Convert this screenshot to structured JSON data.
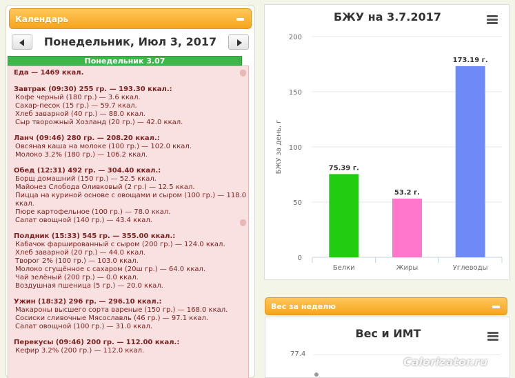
{
  "calendar": {
    "panel_title": "Календарь",
    "date_title": "Понедельник, Июл 3, 2017",
    "day_label": "Понедельник 3.07",
    "total": "Еда — 1469 ккал.",
    "meals": [
      {
        "title": "Завтрак (09:30) 255 гр. — 193.30 ккал.:",
        "items": [
          "Кофе черный (180 гр.) — 3.6 ккал.",
          "Сахар-песок (15 гр.) — 59.7 ккал.",
          "Хлеб заварной (40 гр.) — 88.0 ккал.",
          "Сыр творожный Хозланд (20 гр.) — 42.0 ккал."
        ]
      },
      {
        "title": "Ланч (09:46) 280 гр. — 208.20 ккал.:",
        "items": [
          "Овсяная каша на молоке (100 гр.) — 102.0 ккал.",
          "Молоко 3.2% (180 гр.) — 106.2 ккал."
        ]
      },
      {
        "title": "Обед (12:31) 492 гр. — 304.40 ккал.:",
        "items": [
          "Борщ домашний (150 гр.) — 52.5 ккал.",
          "Майонез Слобода Оливковый (2 гр.) — 12.5 ккал.",
          "Пицца на куриной основе с овощами и сыром (100 гр.) — 118.0 ккал.",
          "Пюре картофельное (100 гр.) — 78.0 ккал.",
          "Салат овощной (140 гр.) — 43.4 ккал."
        ]
      },
      {
        "title": "Полдник (15:33) 545 гр. — 355.00 ккал.:",
        "items": [
          "Кабачок фаршированный с сыром (200 гр.) — 124.0 ккал.",
          "Хлеб заварной (20 гр.) — 44.0 ккал.",
          "Творог 2% (100 гр.) — 103.0 ккал.",
          "Молоко сгущённое с сахаром (20ш гр.) — 64.0 ккал.",
          "Чай зелёный (200 гр.) — 0.0 ккал.",
          "Воздушная пшеница (5 гр.) — 20.0 ккал."
        ]
      },
      {
        "title": "Ужин (18:32) 296 гр. — 296.10 ккал.:",
        "items": [
          "Макароны высшего сорта вареные (150 гр.) — 168.0 ккал.",
          "Сосиски сливочные Мясославль (46 гр.) — 97.1 ккал.",
          "Салат овощной (100 гр.) — 31.0 ккал."
        ]
      },
      {
        "title": "Перекусы (09:46) 200 гр. — 112.00 ккал.:",
        "items": [
          "Кефир 3.2% (200 гр.) — 112.0 ккал."
        ]
      }
    ]
  },
  "chart_data": {
    "type": "bar",
    "title": "БЖУ на 3.7.2017",
    "ylabel": "БЖУ за день, г",
    "categories": [
      "Белки",
      "Жиры",
      "Углеводы"
    ],
    "values": [
      75.39,
      53.2,
      173.19
    ],
    "data_labels": [
      "75.39 г.",
      "53.2 г.",
      "173.19 г."
    ],
    "colors": [
      "#22cc11",
      "#ff77cc",
      "#6e8af7"
    ],
    "ylim": [
      0,
      200
    ],
    "yticks": [
      0,
      50,
      100,
      150,
      200
    ],
    "grid": true
  },
  "weight": {
    "panel_title": "Вес за неделю",
    "chart_title": "Вес и ИМТ",
    "tick": "77.4"
  },
  "watermark": "Calorizator.ru"
}
